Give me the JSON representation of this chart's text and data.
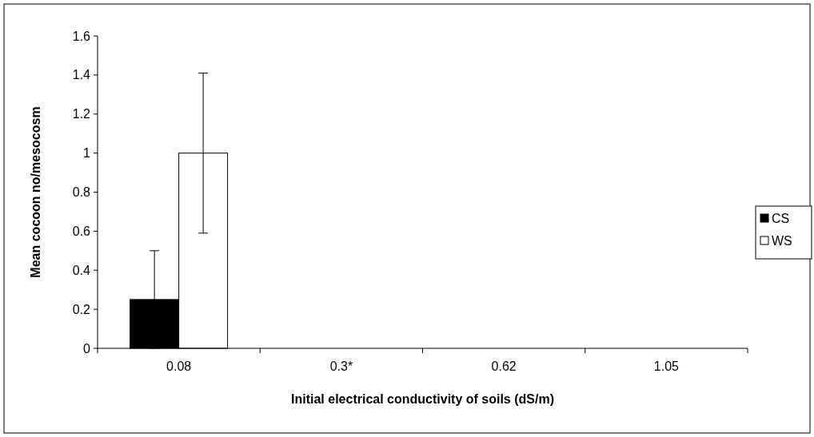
{
  "chart_data": {
    "type": "bar",
    "xlabel": "Initial electrical conductivity of soils (dS/m)",
    "ylabel": "Mean cocoon no/mesocosm",
    "categories": [
      "0.08",
      "0.3*",
      "0.62",
      "1.05"
    ],
    "series": [
      {
        "name": "CS",
        "color": "#000000",
        "values": [
          0.25,
          0,
          0,
          0
        ],
        "errors": [
          0.25,
          null,
          null,
          null
        ]
      },
      {
        "name": "WS",
        "color": "#ffffff",
        "values": [
          1.0,
          0,
          0,
          0
        ],
        "errors": [
          0.41,
          null,
          null,
          null
        ]
      }
    ],
    "ylim": [
      0,
      1.6
    ],
    "yticks": [
      0,
      0.2,
      0.4,
      0.6,
      0.8,
      1,
      1.2,
      1.4,
      1.6
    ],
    "grid": false,
    "legend": "right"
  }
}
